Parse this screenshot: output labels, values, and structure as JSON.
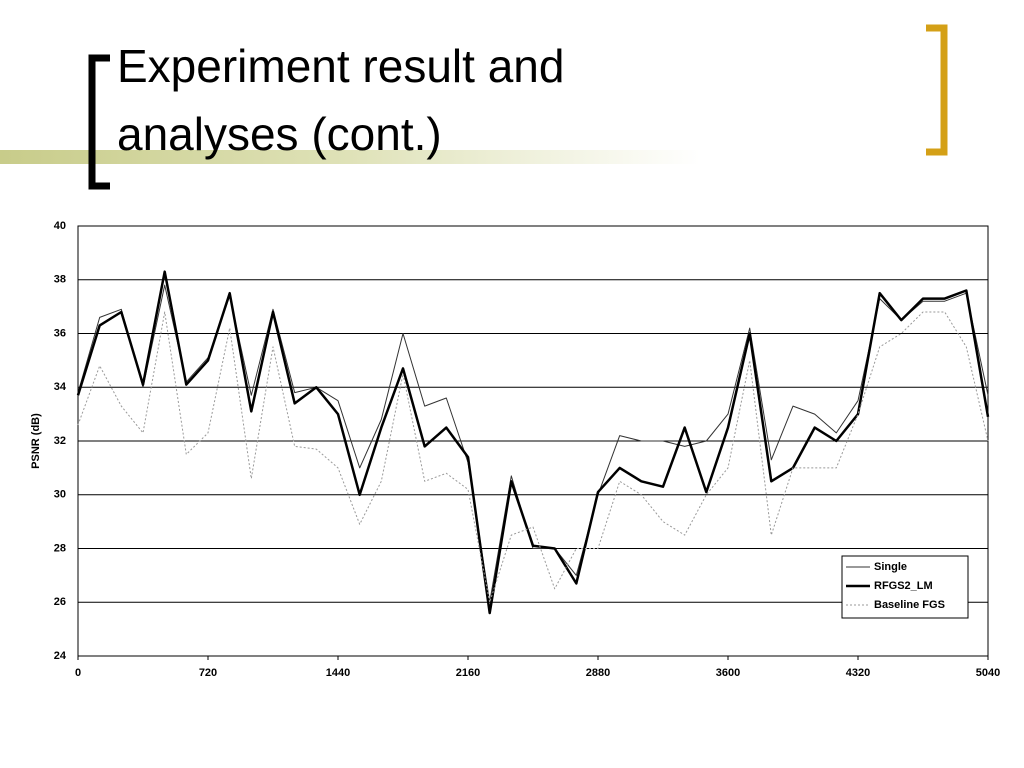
{
  "slide": {
    "title_lines": [
      "Experiment result and",
      "analyses (cont.)"
    ]
  },
  "chart_data": {
    "type": "line",
    "y_label": "PSNR (dB)",
    "x": [
      0,
      120,
      240,
      360,
      480,
      600,
      720,
      840,
      960,
      1080,
      1200,
      1320,
      1440,
      1560,
      1680,
      1800,
      1920,
      2040,
      2160,
      2280,
      2400,
      2520,
      2640,
      2760,
      2880,
      3000,
      3120,
      3240,
      3360,
      3480,
      3600,
      3720,
      3840,
      3960,
      4080,
      4200,
      4320,
      4440,
      4560,
      4680,
      4800,
      4920,
      5040
    ],
    "series": [
      {
        "name": "Single",
        "color": "#333333",
        "width": 1,
        "dash": "none",
        "values": [
          33.8,
          36.6,
          36.9,
          34.0,
          37.8,
          34.2,
          35.1,
          37.4,
          33.7,
          36.9,
          33.8,
          34.0,
          33.5,
          31.0,
          32.8,
          36.0,
          33.3,
          33.6,
          31.2,
          26.0,
          30.7,
          28.0,
          28.0,
          27.0,
          30.0,
          32.2,
          32.0,
          32.0,
          31.8,
          32.0,
          33.0,
          36.2,
          31.3,
          33.3,
          33.0,
          32.3,
          33.5,
          37.3,
          36.5,
          37.2,
          37.2,
          37.5,
          33.7
        ]
      },
      {
        "name": "RFGS2_LM",
        "color": "#000000",
        "width": 2.5,
        "dash": "none",
        "values": [
          33.7,
          36.3,
          36.8,
          34.1,
          38.3,
          34.1,
          35.0,
          37.5,
          33.1,
          36.8,
          33.4,
          34.0,
          33.0,
          30.0,
          32.5,
          34.7,
          31.8,
          32.5,
          31.4,
          25.6,
          30.5,
          28.1,
          28.0,
          26.7,
          30.1,
          31.0,
          30.5,
          30.3,
          32.5,
          30.1,
          32.5,
          36.0,
          30.5,
          31.0,
          32.5,
          32.0,
          33.0,
          37.5,
          36.5,
          37.3,
          37.3,
          37.6,
          32.9
        ]
      },
      {
        "name": "Baseline FGS",
        "color": "#999999",
        "width": 1,
        "dash": "2,2",
        "values": [
          32.6,
          34.8,
          33.3,
          32.3,
          36.8,
          31.5,
          32.3,
          36.2,
          30.6,
          35.5,
          31.8,
          31.7,
          31.0,
          28.9,
          30.5,
          34.5,
          30.5,
          30.8,
          30.2,
          26.0,
          28.5,
          28.8,
          26.5,
          28.0,
          28.0,
          30.5,
          30.0,
          29.0,
          28.5,
          30.0,
          31.0,
          35.0,
          28.5,
          31.0,
          31.0,
          31.0,
          33.0,
          35.5,
          36.0,
          36.8,
          36.8,
          35.5,
          32.0
        ]
      }
    ],
    "xlim": [
      0,
      5040
    ],
    "xticks": [
      0,
      720,
      1440,
      2160,
      2880,
      3600,
      4320,
      5040
    ],
    "ylim": [
      24,
      40
    ],
    "yticks": [
      24,
      26,
      28,
      30,
      32,
      34,
      36,
      38,
      40
    ],
    "grid": true,
    "legend": "lower right"
  }
}
